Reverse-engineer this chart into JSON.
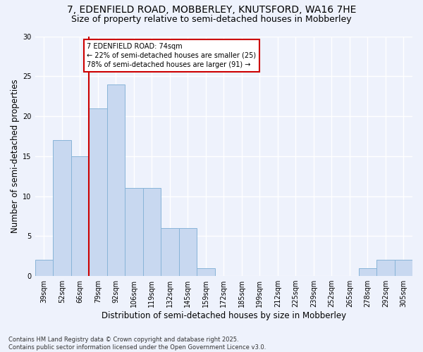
{
  "title1": "7, EDENFIELD ROAD, MOBBERLEY, KNUTSFORD, WA16 7HE",
  "title2": "Size of property relative to semi-detached houses in Mobberley",
  "xlabel": "Distribution of semi-detached houses by size in Mobberley",
  "ylabel": "Number of semi-detached properties",
  "footer": "Contains HM Land Registry data © Crown copyright and database right 2025.\nContains public sector information licensed under the Open Government Licence v3.0.",
  "bin_labels": [
    "39sqm",
    "52sqm",
    "66sqm",
    "79sqm",
    "92sqm",
    "106sqm",
    "119sqm",
    "132sqm",
    "145sqm",
    "159sqm",
    "172sqm",
    "185sqm",
    "199sqm",
    "212sqm",
    "225sqm",
    "239sqm",
    "252sqm",
    "265sqm",
    "278sqm",
    "292sqm",
    "305sqm"
  ],
  "values": [
    2,
    17,
    15,
    21,
    24,
    11,
    11,
    6,
    6,
    1,
    0,
    0,
    0,
    0,
    0,
    0,
    0,
    0,
    1,
    2,
    2
  ],
  "bar_color": "#c8d8f0",
  "bar_edge_color": "#88b4d8",
  "vline_color": "#cc0000",
  "annotation_box_color": "#cc0000",
  "property_label": "7 EDENFIELD ROAD: 74sqm",
  "pct_smaller": 22,
  "n_smaller": 25,
  "pct_larger": 78,
  "n_larger": 91,
  "ylim": [
    0,
    30
  ],
  "yticks": [
    0,
    5,
    10,
    15,
    20,
    25,
    30
  ],
  "background_color": "#eef2fc",
  "grid_color": "#ffffff",
  "title_fontsize": 10,
  "subtitle_fontsize": 9,
  "axis_label_fontsize": 8.5,
  "tick_fontsize": 7,
  "annotation_fontsize": 7,
  "footer_fontsize": 6
}
